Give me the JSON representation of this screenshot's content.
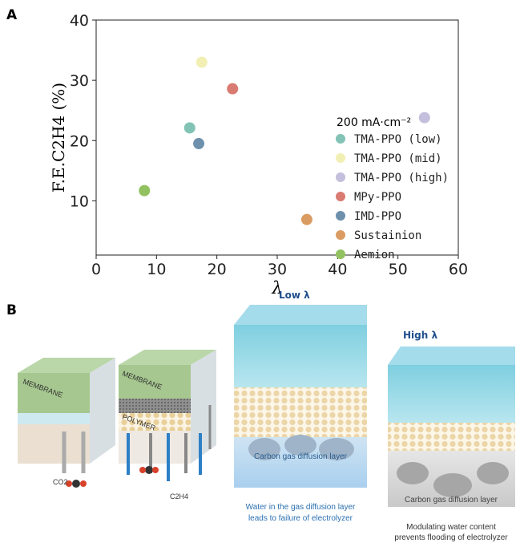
{
  "chart_data": {
    "type": "scatter",
    "panel_label": "A",
    "xlabel": "λ",
    "ylabel": "F.E.C2H4 (%)",
    "xlim": [
      0,
      60
    ],
    "ylim": [
      1,
      40
    ],
    "xticks": [
      0,
      10,
      20,
      30,
      40,
      50,
      60
    ],
    "yticks": [
      10,
      20,
      30,
      40
    ],
    "legend_title": "200 mA·cm⁻²",
    "legend": "right",
    "series": [
      {
        "name": "TMA-PPO (low)",
        "color": "#82c3b6",
        "x": [
          15.5
        ],
        "y": [
          22.1
        ]
      },
      {
        "name": "TMA-PPO (mid)",
        "color": "#f1efb4",
        "x": [
          17.5
        ],
        "y": [
          33.0
        ]
      },
      {
        "name": "TMA-PPO (high)",
        "color": "#c3bfdc",
        "x": [
          54.4
        ],
        "y": [
          23.8
        ]
      },
      {
        "name": "MPy-PPO",
        "color": "#d97b72",
        "x": [
          22.6
        ],
        "y": [
          28.6
        ]
      },
      {
        "name": "IMD-PPO",
        "color": "#6d90ad",
        "x": [
          17.0
        ],
        "y": [
          19.5
        ]
      },
      {
        "name": "Sustainion",
        "color": "#da9c62",
        "x": [
          34.9
        ],
        "y": [
          6.9
        ]
      },
      {
        "name": "Aemion",
        "color": "#92c160",
        "x": [
          8.0
        ],
        "y": [
          11.7
        ]
      }
    ]
  },
  "illustration": {
    "panel_label": "B",
    "low": "Low λ",
    "high": "High λ",
    "membrane": "MEMBRANE",
    "polymer": "POLYMER",
    "co2": "CO2",
    "c2h4": "C2H4",
    "gdl": "Carbon gas diffusion layer",
    "low_caption": [
      "Water in the gas diffusion layer",
      "leads to failure of electrolyzer"
    ],
    "high_caption": [
      "Modulating water content",
      "prevents flooding of electrolyzer"
    ]
  }
}
